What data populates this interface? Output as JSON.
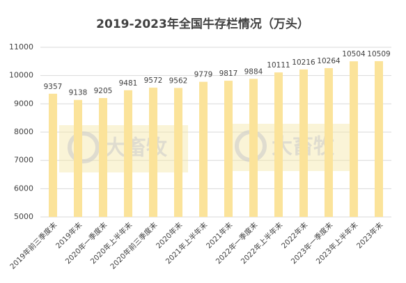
{
  "chart_data": {
    "type": "bar",
    "title": "2019-2023年全国牛存栏情况（万头）",
    "categories": [
      "2019年前三季度末",
      "2019年末",
      "2020年一季度末",
      "2020年上半年末",
      "2020年前三季度末",
      "2020年末",
      "2021年上半年末",
      "2021年末",
      "2022年一季度末",
      "2022年上半年末",
      "2022年末",
      "2023年一季度末",
      "2023年上半年末",
      "2023年末"
    ],
    "values": [
      9357,
      9138,
      9205,
      9481,
      9572,
      9562,
      9779,
      9817,
      9884,
      10111,
      10216,
      10264,
      10504,
      10509
    ],
    "color": "#fbe39a",
    "ylim": [
      5000,
      11000
    ],
    "yticks": [
      5000,
      6000,
      7000,
      8000,
      9000,
      10000,
      11000
    ],
    "grid": true,
    "watermark": "大畜牧"
  }
}
